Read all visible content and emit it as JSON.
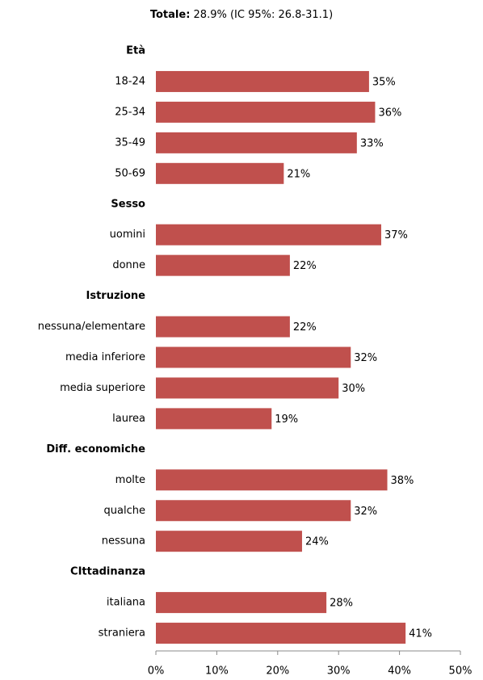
{
  "chart_data": {
    "type": "grouped-hbar",
    "title": "Totale:",
    "subtitle": "28.9% (IC 95%: 26.8-31.1)",
    "color": "#c0504d",
    "groups": [
      {
        "name": "Età",
        "categories": [
          "18-24",
          "25-34",
          "35-49",
          "50-69"
        ],
        "values": [
          35,
          36,
          33,
          21
        ],
        "value_labels": [
          "35%",
          "36%",
          "33%",
          "21%"
        ]
      },
      {
        "name": "Sesso",
        "categories": [
          "uomini",
          "donne"
        ],
        "values": [
          37,
          22
        ],
        "value_labels": [
          "37%",
          "22%"
        ]
      },
      {
        "name": "Istruzione",
        "categories": [
          "nessuna/elementare",
          "media inferiore",
          "media superiore",
          "laurea"
        ],
        "values": [
          22,
          32,
          30,
          19
        ],
        "value_labels": [
          "22%",
          "32%",
          "30%",
          "19%"
        ]
      },
      {
        "name": "Diff. economiche",
        "categories": [
          "molte",
          "qualche",
          "nessuna"
        ],
        "values": [
          38,
          32,
          24
        ],
        "value_labels": [
          "38%",
          "32%",
          "24%"
        ]
      },
      {
        "name": "CIttadinanza",
        "categories": [
          "italiana",
          "straniera"
        ],
        "values": [
          28,
          41
        ],
        "value_labels": [
          "28%",
          "41%"
        ]
      }
    ],
    "xlim": [
      0,
      50
    ],
    "xticks": [
      {
        "value": 0,
        "label": "0%"
      },
      {
        "value": 10,
        "label": "10%"
      },
      {
        "value": 20,
        "label": "20%"
      },
      {
        "value": 30,
        "label": "30%"
      },
      {
        "value": 40,
        "label": "40%"
      },
      {
        "value": 50,
        "label": "50%"
      }
    ]
  }
}
